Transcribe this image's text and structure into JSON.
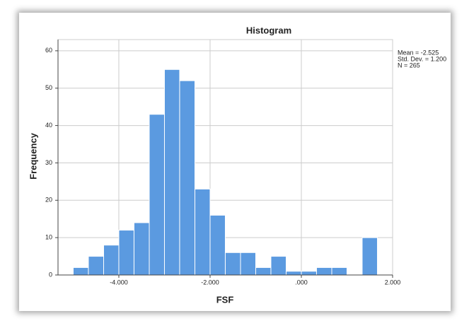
{
  "chart_data": {
    "type": "histogram",
    "title": "Histogram",
    "x_label": "FSF",
    "y_label": "Frequency",
    "bins": [
      -5,
      -4.667,
      -4.333,
      -4,
      -3.667,
      -3.333,
      -3,
      -2.667,
      -2.333,
      -2,
      -1.667,
      -1.333,
      -1,
      -0.667,
      -0.333,
      0,
      0.333,
      0.667,
      1,
      1.333,
      1.667
    ],
    "values": [
      2,
      5,
      8,
      12,
      14,
      43,
      55,
      52,
      23,
      16,
      6,
      6,
      2,
      5,
      1,
      1,
      2,
      2,
      0,
      10
    ],
    "color": "#5b9ae0",
    "xlim": [
      -5.333,
      2
    ],
    "ylim": [
      0,
      63
    ],
    "xticks": [
      {
        "value": -4,
        "label": "-4.000"
      },
      {
        "value": -2,
        "label": "-2.000"
      },
      {
        "value": 0,
        "label": ".000"
      },
      {
        "value": 2,
        "label": "2.000"
      }
    ],
    "yticks": [
      0,
      10,
      20,
      30,
      40,
      50,
      60
    ],
    "grid": true,
    "annotations": [
      "Mean = -2.525",
      "Std. Dev. = 1.200",
      "N = 265"
    ]
  }
}
